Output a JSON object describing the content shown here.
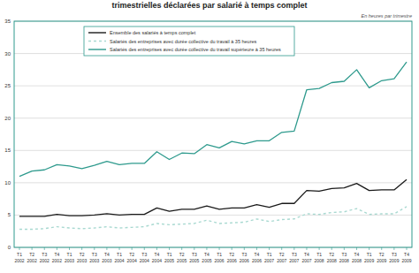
{
  "chart_data": {
    "type": "line",
    "title": "trimestrielles déclarées par salarié à temps complet",
    "y_label": "En heures par trimestre",
    "categories": [
      "T1 2002",
      "T2 2002",
      "T3 2002",
      "T4 2002",
      "T1 2003",
      "T2 2003",
      "T3 2003",
      "T4 2003",
      "T1 2004",
      "T2 2004",
      "T3 2004",
      "T4 2004",
      "T1 2005",
      "T2 2005",
      "T3 2005",
      "T4 2005",
      "T1 2006",
      "T2 2006",
      "T3 2006",
      "T4 2006",
      "T1 2007",
      "T2 2007",
      "T3 2007",
      "T4 2007",
      "T1 2008",
      "T2 2008",
      "T3 2008",
      "T4 2008",
      "T1 2009",
      "T2 2009",
      "T3 2009",
      "T4 2009"
    ],
    "series": [
      {
        "name": "Ensemble des salariés à temps complet",
        "color": "#1a1a1a",
        "line_style": "solid",
        "values": [
          4.8,
          4.8,
          4.8,
          5.1,
          4.9,
          4.9,
          5.0,
          5.2,
          5.0,
          5.1,
          5.1,
          6.1,
          5.6,
          5.9,
          5.9,
          6.4,
          5.9,
          6.1,
          6.1,
          6.6,
          6.2,
          6.8,
          6.8,
          8.8,
          8.7,
          9.1,
          9.2,
          9.9,
          8.8,
          8.9,
          8.9,
          10.5
        ]
      },
      {
        "name": "Salariés des entreprises avec durée collective du travail à 35 heures",
        "color": "#a9d9d1",
        "line_style": "dashed",
        "values": [
          2.8,
          2.8,
          2.9,
          3.2,
          3.0,
          2.9,
          3.0,
          3.2,
          3.0,
          3.1,
          3.2,
          3.7,
          3.5,
          3.6,
          3.7,
          4.2,
          3.7,
          3.8,
          3.9,
          4.4,
          4.0,
          4.3,
          4.4,
          5.2,
          5.1,
          5.4,
          5.5,
          6.0,
          5.1,
          5.2,
          5.2,
          6.3
        ]
      },
      {
        "name": "Salariés des entreprises avec durée collective du travail supérieure à 35 heures",
        "color": "#2e9a8d",
        "line_style": "solid",
        "values": [
          11.0,
          11.8,
          12.0,
          12.8,
          12.6,
          12.2,
          12.7,
          13.3,
          12.8,
          13.0,
          13.0,
          14.8,
          13.6,
          14.6,
          14.5,
          15.9,
          15.4,
          16.4,
          16.0,
          16.5,
          16.5,
          17.8,
          18.0,
          24.4,
          24.6,
          25.5,
          25.7,
          27.5,
          24.7,
          25.8,
          26.1,
          28.7
        ]
      }
    ],
    "ylim": [
      0,
      35
    ],
    "yticks": [
      0,
      5,
      10,
      15,
      20,
      25,
      30,
      35
    ],
    "grid": true
  }
}
